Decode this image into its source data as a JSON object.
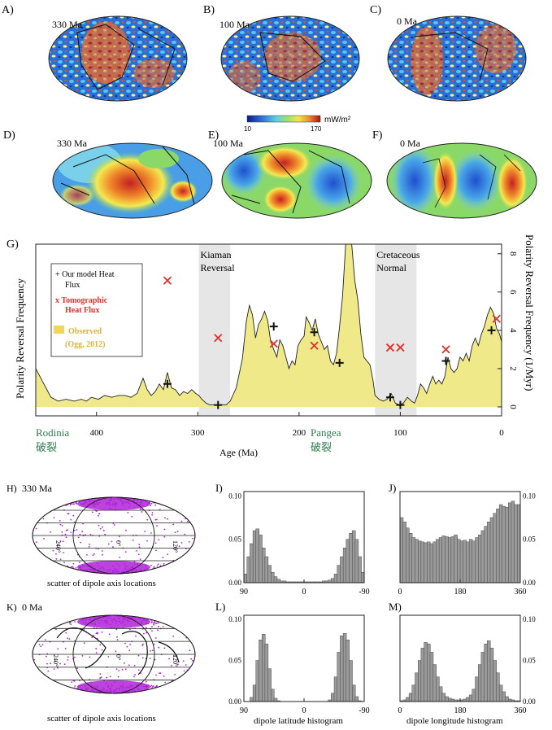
{
  "colors": {
    "observed_fill": "#efe98a",
    "observed_line": "#222222",
    "tomographic_marker": "#e0302a",
    "model_marker": "#111111",
    "reversal_band": "#e6e6e6",
    "rodinia_pangea_label": "#2e7d4f",
    "histogram_fill": "#9a9a9a",
    "dipole_scatter": "#b022d8"
  },
  "map_panels": [
    {
      "letter": "A)",
      "age": "330 Ma"
    },
    {
      "letter": "B)",
      "age": "100 Ma"
    },
    {
      "letter": "C)",
      "age": "0 Ma"
    },
    {
      "letter": "D)",
      "age": "330 Ma"
    },
    {
      "letter": "E)",
      "age": "100 Ma"
    },
    {
      "letter": "F)",
      "age": "0 Ma"
    }
  ],
  "colorbar": {
    "min_label": "10",
    "max_label": "170",
    "unit": "mW/m²"
  },
  "chart_data": [
    {
      "panel": "G)",
      "type": "area",
      "ylabel_left": "Polarity Reversal Frequency",
      "ylabel_right": "Polarity Reversal Frequency (1/Myr)",
      "xlabel": "Age (Ma)",
      "xlim": [
        0,
        460
      ],
      "ylim": [
        0,
        8.5
      ],
      "x_ticks": [
        400,
        300,
        200,
        100,
        0
      ],
      "y_ticks": [
        0,
        2,
        4,
        6,
        8
      ],
      "x_reversed": true,
      "bands": [
        {
          "label_line1": "Kiaman",
          "label_line2": "Reversal",
          "x_from": 299,
          "x_to": 268
        },
        {
          "label_line1": "Cretaceous",
          "label_line2": "Normal",
          "x_from": 125,
          "x_to": 84
        }
      ],
      "legend": {
        "model": "+ Our model Heat Flux",
        "model_line1": "+ Our model Heat",
        "model_line2": "Flux",
        "tomo_line1": "x Tomographic",
        "tomo_line2": "Heat Flux",
        "observed_line1": "Observed",
        "observed_line2": "(Ogg, 2012)"
      },
      "observed_series": {
        "name": "Observed",
        "x": [
          460,
          452,
          445,
          438,
          430,
          422,
          415,
          410,
          405,
          398,
          392,
          385,
          378,
          372,
          366,
          360,
          354,
          350,
          346,
          342,
          338,
          334,
          330,
          326,
          322,
          318,
          314,
          310,
          306,
          302,
          299,
          296,
          292,
          288,
          284,
          280,
          276,
          272,
          268,
          262,
          256,
          252,
          249,
          246,
          243,
          240,
          237,
          234,
          231,
          228,
          225,
          222,
          219,
          216,
          213,
          210,
          207,
          204,
          201,
          198,
          195,
          193,
          190,
          187,
          184,
          181,
          178,
          175,
          172,
          169,
          166,
          163,
          160,
          157,
          154,
          151,
          148,
          145,
          142,
          139,
          136,
          133,
          130,
          127,
          125,
          121,
          117,
          113,
          109,
          105,
          101,
          97,
          93,
          89,
          86,
          83,
          80,
          77,
          74,
          71,
          68,
          65,
          62,
          59,
          56,
          53,
          50,
          47,
          44,
          41,
          38,
          35,
          32,
          29,
          26,
          23,
          20,
          17,
          14,
          11,
          8,
          5,
          2,
          0
        ],
        "y": [
          2.0,
          1.2,
          0.5,
          0.3,
          0.4,
          0.3,
          0.4,
          0.3,
          0.5,
          0.4,
          0.6,
          0.5,
          0.6,
          0.6,
          0.5,
          0.7,
          1.5,
          0.9,
          0.6,
          0.8,
          1.2,
          0.9,
          1.8,
          1.0,
          0.9,
          0.6,
          0.8,
          0.7,
          0.9,
          0.7,
          0.6,
          0.4,
          0.2,
          0.1,
          0.1,
          0.1,
          0.1,
          0.1,
          0.3,
          1.0,
          2.5,
          4.5,
          5.3,
          4.8,
          3.6,
          4.3,
          4.6,
          5.0,
          4.5,
          3.4,
          3.0,
          2.6,
          3.5,
          3.2,
          2.6,
          2.0,
          2.4,
          2.2,
          3.2,
          3.5,
          3.7,
          4.7,
          4.4,
          4.0,
          4.6,
          3.8,
          3.4,
          3.0,
          3.2,
          2.4,
          2.2,
          2.8,
          4.2,
          5.8,
          8.5,
          8.5,
          8.5,
          6.6,
          5.6,
          3.8,
          2.6,
          2.4,
          2.2,
          1.4,
          0.6,
          0.4,
          0.3,
          0.4,
          0.7,
          0.2,
          0.1,
          0.2,
          0.5,
          0.3,
          0.2,
          0.6,
          1.2,
          1.0,
          0.7,
          1.2,
          1.6,
          1.2,
          1.4,
          1.2,
          1.6,
          2.6,
          2.0,
          1.8,
          2.0,
          2.6,
          2.4,
          2.8,
          2.4,
          3.2,
          3.6,
          3.2,
          3.8,
          4.2,
          4.8,
          5.2,
          4.9,
          4.1,
          3.8,
          3.4
        ]
      },
      "model_points": {
        "name": "Our model Heat Flux",
        "x": [
          330,
          280,
          225,
          185,
          160,
          110,
          100,
          55,
          10
        ],
        "y": [
          1.2,
          0.1,
          4.2,
          3.9,
          2.3,
          0.5,
          0.1,
          2.4,
          4.0
        ]
      },
      "tomographic_points": {
        "name": "Tomographic Heat Flux",
        "x": [
          330,
          280,
          225,
          185,
          110,
          100,
          55,
          5
        ],
        "y": [
          6.6,
          3.6,
          3.3,
          3.2,
          3.1,
          3.1,
          3.0,
          4.6
        ]
      },
      "annotations": [
        {
          "text": "Rodinia",
          "sub": "破裂",
          "x": 410
        },
        {
          "text": "Pangea",
          "sub": "破裂",
          "x": 165
        }
      ]
    },
    {
      "panel": "I)",
      "type": "bar",
      "xlabel": "",
      "x_ticks": [
        "90",
        "0",
        "-90"
      ],
      "y_ticks": [
        "0.00",
        "0.05",
        "0.10"
      ],
      "xlim": [
        90,
        -90
      ],
      "ylim": [
        0,
        0.105
      ],
      "values": [
        0.01,
        0.03,
        0.045,
        0.06,
        0.062,
        0.055,
        0.04,
        0.03,
        0.02,
        0.012,
        0.007,
        0.004,
        0.002,
        0.002,
        0.001,
        0.001,
        0.001,
        0.001,
        0.001,
        0.001,
        0.001,
        0.001,
        0.001,
        0.001,
        0.001,
        0.001,
        0.002,
        0.002,
        0.003,
        0.005,
        0.01,
        0.02,
        0.03,
        0.04,
        0.05,
        0.057,
        0.06,
        0.05,
        0.03,
        0.012
      ]
    },
    {
      "panel": "J)",
      "type": "bar",
      "xlabel": "",
      "x_ticks": [
        "0",
        "180",
        "360"
      ],
      "y_ticks": [
        "0.00",
        "0.05",
        "0.10"
      ],
      "xlim": [
        0,
        360
      ],
      "ylim": [
        0,
        0.105
      ],
      "values": [
        0.075,
        0.07,
        0.063,
        0.057,
        0.052,
        0.05,
        0.048,
        0.047,
        0.046,
        0.047,
        0.045,
        0.047,
        0.05,
        0.052,
        0.054,
        0.053,
        0.052,
        0.053,
        0.055,
        0.05,
        0.048,
        0.049,
        0.047,
        0.05,
        0.048,
        0.052,
        0.055,
        0.06,
        0.065,
        0.07,
        0.075,
        0.08,
        0.085,
        0.09,
        0.088,
        0.087,
        0.092,
        0.094,
        0.09,
        0.09
      ]
    },
    {
      "panel": "L)",
      "type": "bar",
      "xlabel": "dipole latitude histogram",
      "x_ticks": [
        "90",
        "0",
        "-90"
      ],
      "y_ticks": [
        "0.00",
        "0.05",
        "0.10"
      ],
      "xlim": [
        90,
        -90
      ],
      "ylim": [
        0,
        0.105
      ],
      "values": [
        0.0,
        0.0,
        0.005,
        0.02,
        0.05,
        0.075,
        0.082,
        0.07,
        0.04,
        0.015,
        0.004,
        0.001,
        0.0,
        0.0,
        0.0,
        0.0,
        0.0,
        0.0,
        0.0,
        0.0,
        0.0,
        0.0,
        0.0,
        0.0,
        0.0,
        0.0,
        0.0,
        0.0,
        0.002,
        0.01,
        0.03,
        0.06,
        0.08,
        0.083,
        0.075,
        0.05,
        0.02,
        0.006,
        0.001,
        0.0
      ]
    },
    {
      "panel": "M)",
      "type": "bar",
      "xlabel": "dipole longitude histogram",
      "x_ticks": [
        "0",
        "180",
        "360"
      ],
      "y_ticks": [
        "0.00",
        "0.05",
        "0.10"
      ],
      "xlim": [
        0,
        360
      ],
      "ylim": [
        0,
        0.105
      ],
      "values": [
        0.001,
        0.002,
        0.005,
        0.01,
        0.02,
        0.035,
        0.05,
        0.065,
        0.072,
        0.07,
        0.06,
        0.045,
        0.03,
        0.018,
        0.01,
        0.006,
        0.004,
        0.003,
        0.002,
        0.002,
        0.002,
        0.003,
        0.005,
        0.008,
        0.015,
        0.03,
        0.045,
        0.06,
        0.07,
        0.074,
        0.065,
        0.05,
        0.035,
        0.02,
        0.012,
        0.006,
        0.003,
        0.002,
        0.001,
        0.001
      ]
    }
  ],
  "dipole_panels": [
    {
      "letter": "H)",
      "age": "330 Ma",
      "caption": "scatter of dipole axis locations",
      "lon_labels": [
        "240°",
        "0°",
        "120°"
      ]
    },
    {
      "letter": "K)",
      "age": "0 Ma",
      "caption": "scatter of dipole axis locations",
      "lon_labels": [
        "240°",
        "0°",
        "120°"
      ]
    }
  ]
}
